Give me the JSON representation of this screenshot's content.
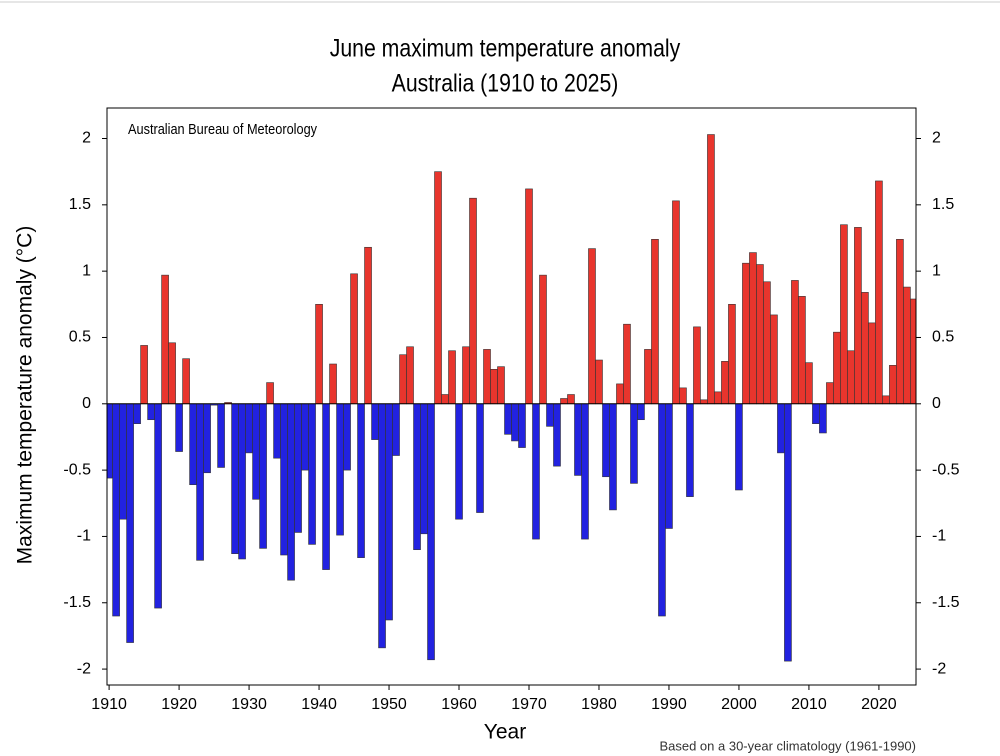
{
  "chart_data": {
    "type": "bar",
    "title": [
      "June maximum temperature anomaly",
      "Australia (1910 to 2025)"
    ],
    "annotation": "Australian Bureau of Meteorology",
    "footnote": "Based on a 30-year climatology (1961-1990)",
    "x_label": "Year",
    "y_label": "Maximum temperature anomaly (°C)",
    "positive_color": "#e8352d",
    "negative_color": "#2222e0",
    "xlim": [
      1909.7,
      2025.3
    ],
    "xticks": [
      1910,
      1920,
      1930,
      1940,
      1950,
      1960,
      1970,
      1980,
      1990,
      2000,
      2010,
      2020
    ],
    "ylim": [
      -2.12,
      2.23
    ],
    "yticks": [
      -2,
      -1.5,
      -1,
      -0.5,
      0,
      0.5,
      1,
      1.5,
      2
    ],
    "x": [
      1910,
      1911,
      1912,
      1913,
      1914,
      1915,
      1916,
      1917,
      1918,
      1919,
      1920,
      1921,
      1922,
      1923,
      1924,
      1925,
      1926,
      1927,
      1928,
      1929,
      1930,
      1931,
      1932,
      1933,
      1934,
      1935,
      1936,
      1937,
      1938,
      1939,
      1940,
      1941,
      1942,
      1943,
      1944,
      1945,
      1946,
      1947,
      1948,
      1949,
      1950,
      1951,
      1952,
      1953,
      1954,
      1955,
      1956,
      1957,
      1958,
      1959,
      1960,
      1961,
      1962,
      1963,
      1964,
      1965,
      1966,
      1967,
      1968,
      1969,
      1970,
      1971,
      1972,
      1973,
      1974,
      1975,
      1976,
      1977,
      1978,
      1979,
      1980,
      1981,
      1982,
      1983,
      1984,
      1985,
      1986,
      1987,
      1988,
      1989,
      1990,
      1991,
      1992,
      1993,
      1994,
      1995,
      1996,
      1997,
      1998,
      1999,
      2000,
      2001,
      2002,
      2003,
      2004,
      2005,
      2006,
      2007,
      2008,
      2009,
      2010,
      2011,
      2012,
      2013,
      2014,
      2015,
      2016,
      2017,
      2018,
      2019,
      2020,
      2021,
      2022,
      2023,
      2024,
      2025
    ],
    "values": [
      -0.56,
      -1.6,
      -0.87,
      -1.8,
      -0.15,
      0.44,
      -0.12,
      -1.54,
      0.97,
      0.46,
      -0.36,
      0.34,
      -0.61,
      -1.18,
      -0.52,
      -0.01,
      -0.48,
      0.01,
      -1.13,
      -1.17,
      -0.37,
      -0.72,
      -1.09,
      0.16,
      -0.41,
      -1.14,
      -1.33,
      -0.97,
      -0.5,
      -1.06,
      0.75,
      -1.25,
      0.3,
      -0.99,
      -0.5,
      0.98,
      -1.16,
      1.18,
      -0.27,
      -1.84,
      -1.63,
      -0.39,
      0.37,
      0.43,
      -1.1,
      -0.98,
      -1.93,
      1.75,
      0.07,
      0.4,
      -0.87,
      0.43,
      1.55,
      -0.82,
      0.41,
      0.26,
      0.28,
      -0.23,
      -0.28,
      -0.33,
      1.62,
      -1.02,
      0.97,
      -0.17,
      -0.47,
      0.04,
      0.07,
      -0.54,
      -1.02,
      1.17,
      0.33,
      -0.55,
      -0.8,
      0.15,
      0.6,
      -0.6,
      -0.12,
      0.41,
      1.24,
      -1.6,
      -0.94,
      1.53,
      0.12,
      -0.7,
      0.58,
      0.03,
      2.03,
      0.09,
      0.32,
      0.75,
      -0.65,
      1.06,
      1.14,
      1.05,
      0.92,
      0.67,
      -0.37,
      -1.94,
      0.93,
      0.81,
      0.31,
      -0.15,
      -0.22,
      0.16,
      0.54,
      1.35,
      0.4,
      1.33,
      0.84,
      0.61,
      1.68,
      0.06,
      0.29,
      1.24,
      0.88,
      0.79
    ]
  }
}
